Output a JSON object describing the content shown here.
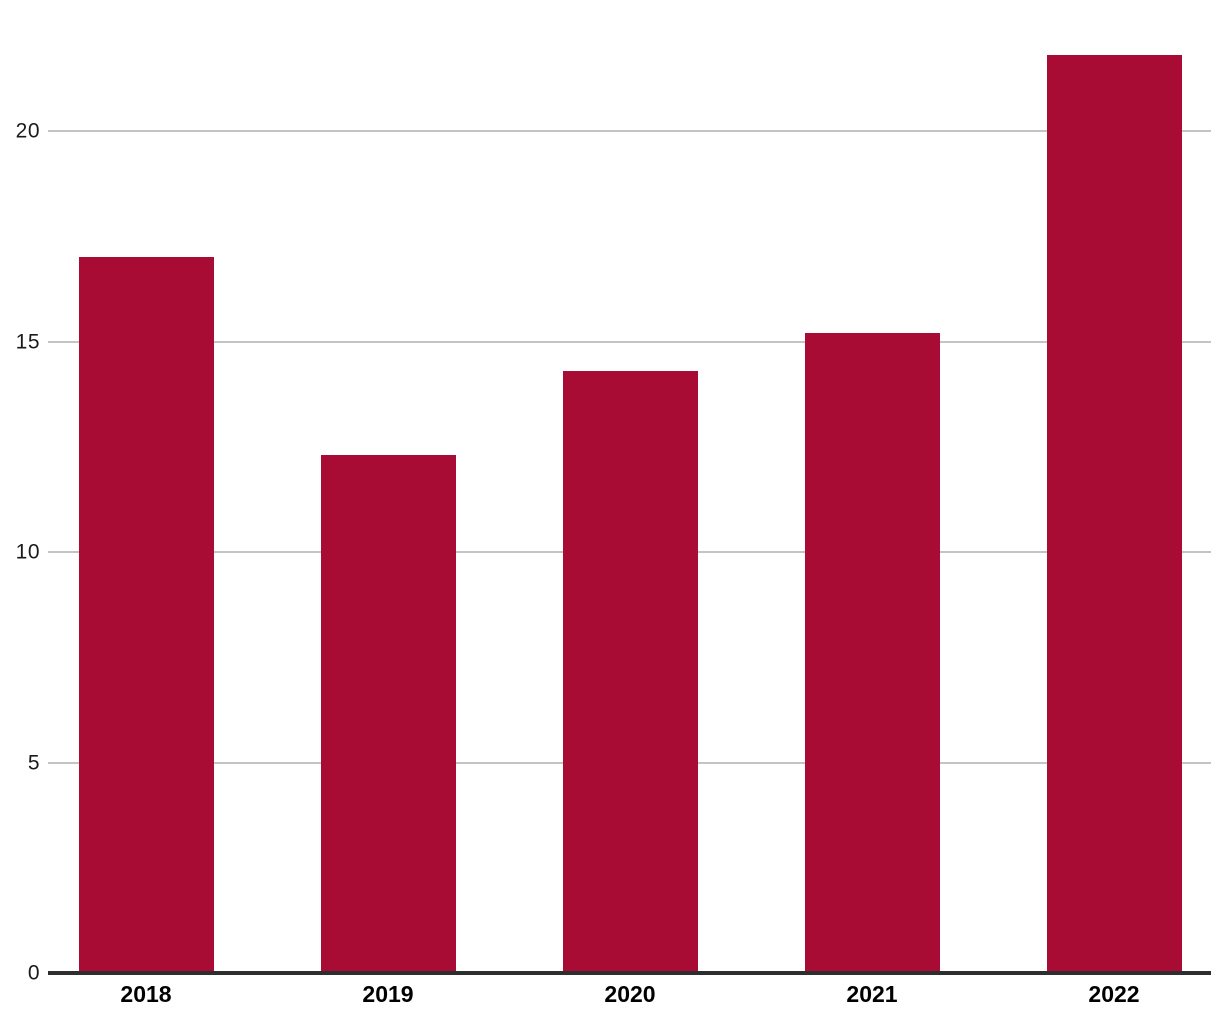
{
  "chart_data": {
    "type": "bar",
    "title": "",
    "xlabel": "",
    "ylabel": "",
    "categories": [
      "2018",
      "2019",
      "2020",
      "2021",
      "2022"
    ],
    "values": [
      17,
      12.3,
      14.3,
      15.2,
      21.8
    ],
    "yticks": [
      0,
      5,
      10,
      15,
      20
    ],
    "ylim": [
      0,
      23.1
    ],
    "grid": true,
    "legend": false,
    "colors": {
      "bar": "#A80B33",
      "gridline": "#C4C4C4",
      "axis_line": "#2E2E2E",
      "tick_label": "#1A1A1A",
      "background": "#FFFFFF"
    }
  }
}
